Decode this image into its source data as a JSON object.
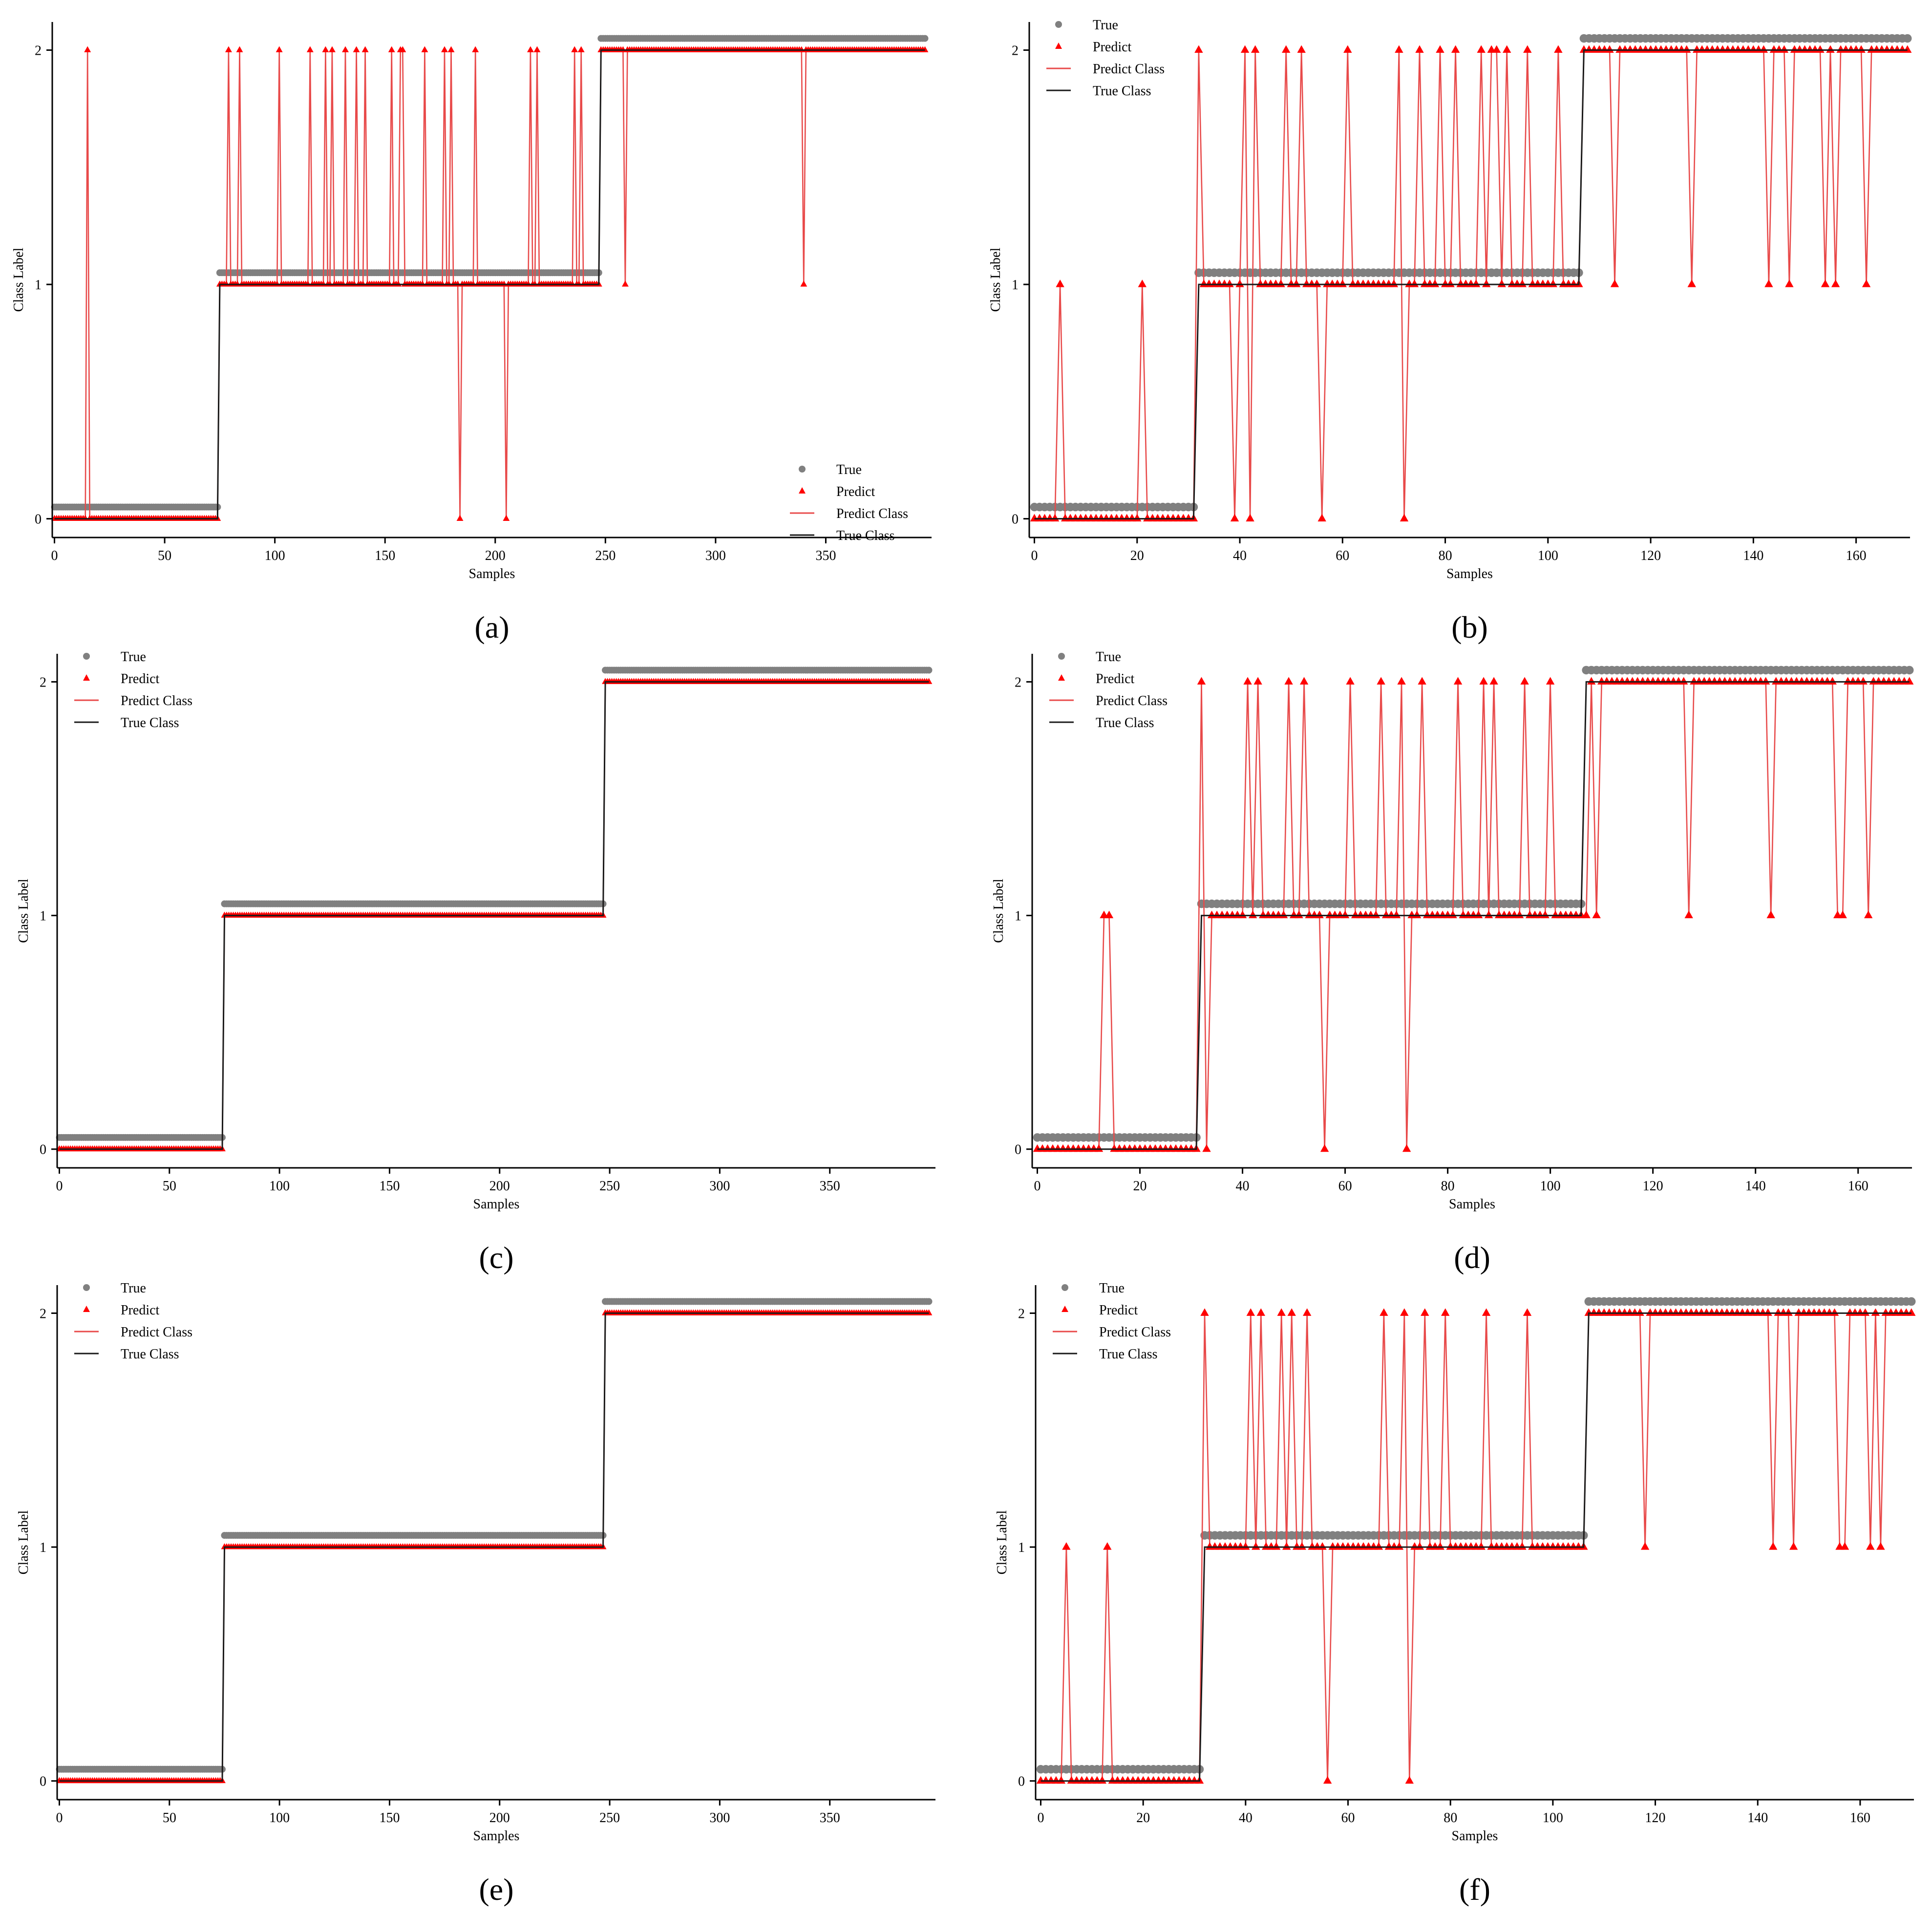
{
  "colors": {
    "true_points": "#808080",
    "predict_points": "#ff0000",
    "predict_line": "#e84a4a",
    "true_line": "#1a1a1a",
    "axis": "#000000"
  },
  "chart_data": [
    {
      "panel": "(a)",
      "type": "scatter",
      "n": 396,
      "xlabel": "Samples",
      "ylabel": "Class Label",
      "xlim": [
        -1,
        398
      ],
      "ylim": [
        -0.08,
        2.12
      ],
      "xticks": [
        0,
        50,
        100,
        150,
        200,
        250,
        300,
        350
      ],
      "yticks": [
        0,
        1,
        2
      ],
      "legend": {
        "position": "bottom-right",
        "entries": [
          "True",
          "Predict",
          "Predict Class",
          "True Class"
        ]
      },
      "true_segments": [
        {
          "from": 0,
          "to": 74,
          "label": 0
        },
        {
          "from": 75,
          "to": 247,
          "label": 1
        },
        {
          "from": 248,
          "to": 395,
          "label": 2
        }
      ],
      "prediction_errors": [
        [
          15,
          2
        ],
        [
          79,
          2
        ],
        [
          84,
          2
        ],
        [
          102,
          2
        ],
        [
          116,
          2
        ],
        [
          123,
          2
        ],
        [
          126,
          2
        ],
        [
          132,
          2
        ],
        [
          137,
          2
        ],
        [
          141,
          2
        ],
        [
          153,
          2
        ],
        [
          157,
          2
        ],
        [
          158,
          2
        ],
        [
          168,
          2
        ],
        [
          177,
          2
        ],
        [
          180,
          2
        ],
        [
          191,
          2
        ],
        [
          216,
          2
        ],
        [
          219,
          2
        ],
        [
          236,
          2
        ],
        [
          239,
          2
        ],
        [
          184,
          0
        ],
        [
          205,
          0
        ],
        [
          259,
          1
        ],
        [
          340,
          1
        ]
      ]
    },
    {
      "panel": "(b)",
      "type": "scatter",
      "n": 171,
      "xlabel": "Samples",
      "ylabel": "Class Label",
      "xlim": [
        -1,
        170.5
      ],
      "ylim": [
        -0.08,
        2.12
      ],
      "xticks": [
        0,
        20,
        40,
        60,
        80,
        100,
        120,
        140,
        160
      ],
      "yticks": [
        0,
        1,
        2
      ],
      "legend": {
        "position": "top-left",
        "entries": [
          "True",
          "Predict",
          "Predict Class",
          "True Class"
        ]
      },
      "true_segments": [
        {
          "from": 0,
          "to": 31,
          "label": 0
        },
        {
          "from": 32,
          "to": 106,
          "label": 1
        },
        {
          "from": 107,
          "to": 170,
          "label": 2
        }
      ],
      "prediction_errors": [
        [
          5,
          1
        ],
        [
          21,
          1
        ],
        [
          32,
          2
        ],
        [
          41,
          2
        ],
        [
          43,
          2
        ],
        [
          49,
          2
        ],
        [
          52,
          2
        ],
        [
          61,
          2
        ],
        [
          71,
          2
        ],
        [
          75,
          2
        ],
        [
          79,
          2
        ],
        [
          82,
          2
        ],
        [
          87,
          2
        ],
        [
          89,
          2
        ],
        [
          90,
          2
        ],
        [
          92,
          2
        ],
        [
          96,
          2
        ],
        [
          102,
          2
        ],
        [
          39,
          0
        ],
        [
          42,
          0
        ],
        [
          56,
          0
        ],
        [
          72,
          0
        ],
        [
          113,
          1
        ],
        [
          128,
          1
        ],
        [
          143,
          1
        ],
        [
          147,
          1
        ],
        [
          154,
          1
        ],
        [
          156,
          1
        ],
        [
          162,
          1
        ]
      ]
    },
    {
      "panel": "(c)",
      "type": "scatter",
      "n": 396,
      "xlabel": "Samples",
      "ylabel": "Class Label",
      "xlim": [
        -1,
        398
      ],
      "ylim": [
        -0.08,
        2.12
      ],
      "xticks": [
        0,
        50,
        100,
        150,
        200,
        250,
        300,
        350
      ],
      "yticks": [
        0,
        1,
        2
      ],
      "legend": {
        "position": "top-left",
        "entries": [
          "True",
          "Predict",
          "Predict Class",
          "True Class"
        ]
      },
      "true_segments": [
        {
          "from": 0,
          "to": 74,
          "label": 0
        },
        {
          "from": 75,
          "to": 247,
          "label": 1
        },
        {
          "from": 248,
          "to": 395,
          "label": 2
        }
      ],
      "prediction_errors": []
    },
    {
      "panel": "(d)",
      "type": "scatter",
      "n": 171,
      "xlabel": "Samples",
      "ylabel": "Class Label",
      "xlim": [
        -1,
        170.5
      ],
      "ylim": [
        -0.08,
        2.12
      ],
      "xticks": [
        0,
        20,
        40,
        60,
        80,
        100,
        120,
        140,
        160
      ],
      "yticks": [
        0,
        1,
        2
      ],
      "legend": {
        "position": "top-left",
        "entries": [
          "True",
          "Predict",
          "Predict Class",
          "True Class"
        ]
      },
      "true_segments": [
        {
          "from": 0,
          "to": 31,
          "label": 0
        },
        {
          "from": 32,
          "to": 106,
          "label": 1
        },
        {
          "from": 107,
          "to": 170,
          "label": 2
        }
      ],
      "prediction_errors": [
        [
          13,
          1
        ],
        [
          14,
          1
        ],
        [
          32,
          2
        ],
        [
          41,
          2
        ],
        [
          43,
          2
        ],
        [
          49,
          2
        ],
        [
          52,
          2
        ],
        [
          61,
          2
        ],
        [
          67,
          2
        ],
        [
          71,
          2
        ],
        [
          75,
          2
        ],
        [
          82,
          2
        ],
        [
          87,
          2
        ],
        [
          89,
          2
        ],
        [
          95,
          2
        ],
        [
          100,
          2
        ],
        [
          33,
          0
        ],
        [
          56,
          0
        ],
        [
          72,
          0
        ],
        [
          107,
          1
        ],
        [
          109,
          1
        ],
        [
          127,
          1
        ],
        [
          143,
          1
        ],
        [
          156,
          1
        ],
        [
          157,
          1
        ],
        [
          162,
          1
        ]
      ]
    },
    {
      "panel": "(e)",
      "type": "scatter",
      "n": 396,
      "xlabel": "Samples",
      "ylabel": "Class Label",
      "xlim": [
        -1,
        398
      ],
      "ylim": [
        -0.08,
        2.12
      ],
      "xticks": [
        0,
        50,
        100,
        150,
        200,
        250,
        300,
        350
      ],
      "yticks": [
        0,
        1,
        2
      ],
      "legend": {
        "position": "top-left",
        "entries": [
          "True",
          "Predict",
          "Predict Class",
          "True Class"
        ]
      },
      "true_segments": [
        {
          "from": 0,
          "to": 74,
          "label": 0
        },
        {
          "from": 75,
          "to": 247,
          "label": 1
        },
        {
          "from": 248,
          "to": 395,
          "label": 2
        }
      ],
      "prediction_errors": []
    },
    {
      "panel": "(f)",
      "type": "scatter",
      "n": 171,
      "xlabel": "Samples",
      "ylabel": "Class Label",
      "xlim": [
        -1,
        170.5
      ],
      "ylim": [
        -0.08,
        2.12
      ],
      "xticks": [
        0,
        20,
        40,
        60,
        80,
        100,
        120,
        140,
        160
      ],
      "yticks": [
        0,
        1,
        2
      ],
      "legend": {
        "position": "top-left",
        "entries": [
          "True",
          "Predict",
          "Predict Class",
          "True Class"
        ]
      },
      "true_segments": [
        {
          "from": 0,
          "to": 31,
          "label": 0
        },
        {
          "from": 32,
          "to": 106,
          "label": 1
        },
        {
          "from": 107,
          "to": 170,
          "label": 2
        }
      ],
      "prediction_errors": [
        [
          5,
          1
        ],
        [
          13,
          1
        ],
        [
          32,
          2
        ],
        [
          41,
          2
        ],
        [
          43,
          2
        ],
        [
          47,
          2
        ],
        [
          49,
          2
        ],
        [
          52,
          2
        ],
        [
          67,
          2
        ],
        [
          71,
          2
        ],
        [
          75,
          2
        ],
        [
          79,
          2
        ],
        [
          87,
          2
        ],
        [
          95,
          2
        ],
        [
          56,
          0
        ],
        [
          72,
          0
        ],
        [
          118,
          1
        ],
        [
          143,
          1
        ],
        [
          147,
          1
        ],
        [
          156,
          1
        ],
        [
          157,
          1
        ],
        [
          162,
          1
        ],
        [
          164,
          1
        ]
      ]
    }
  ]
}
